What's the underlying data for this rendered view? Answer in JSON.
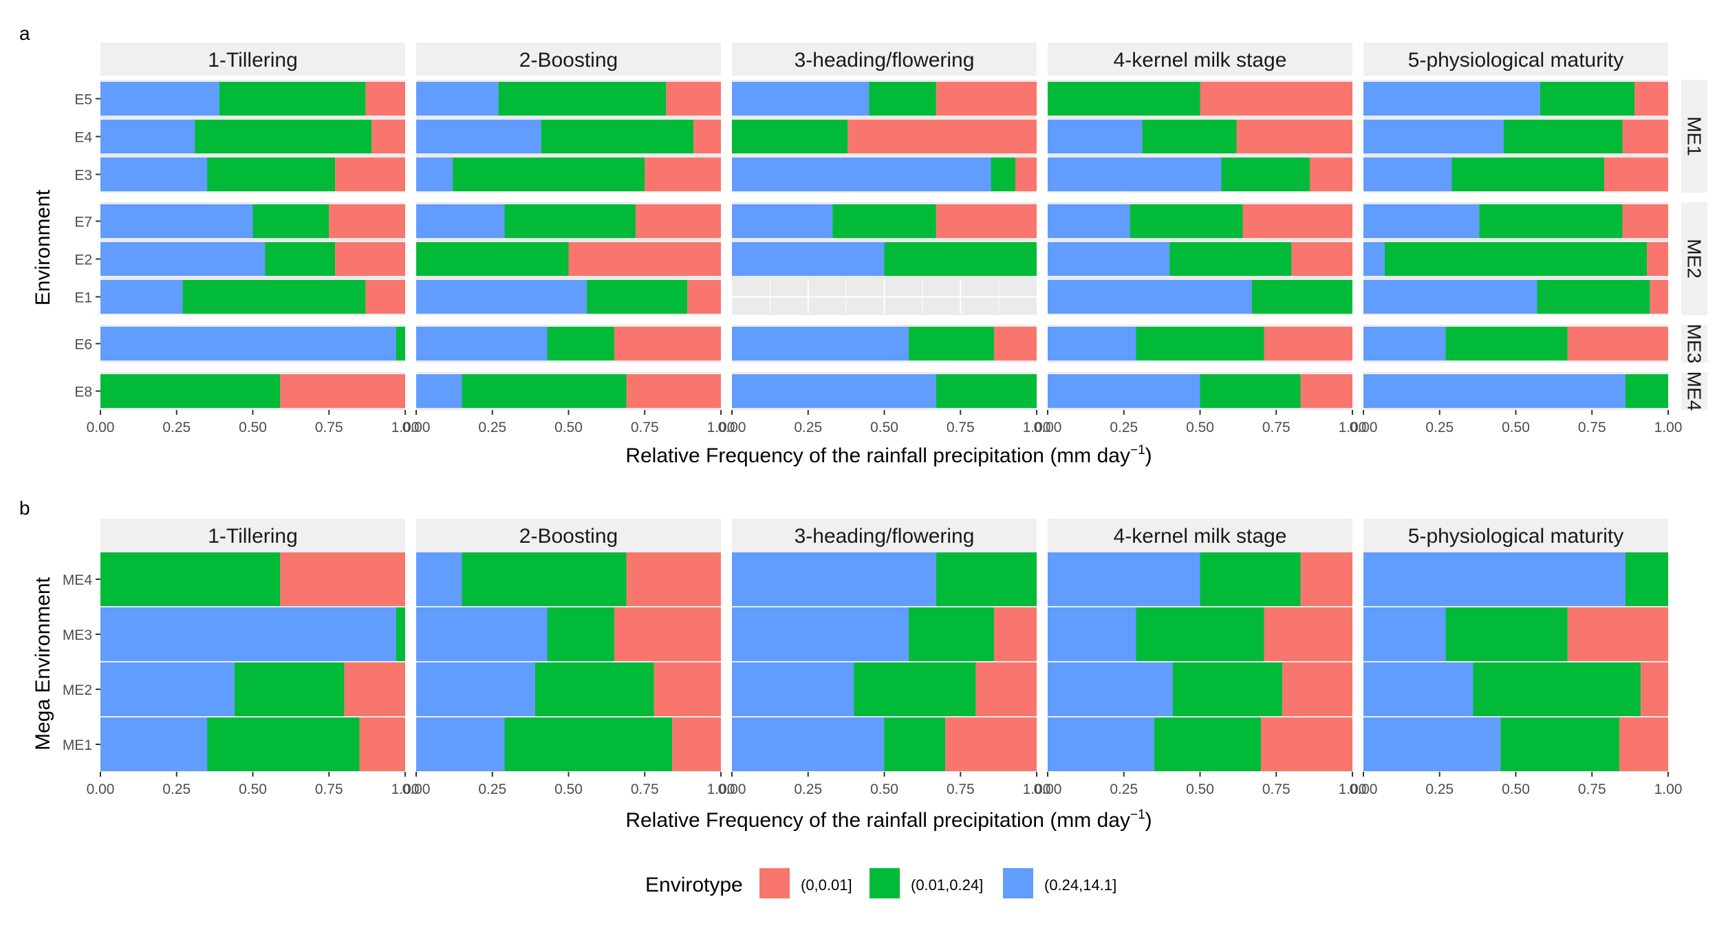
{
  "panel_labels": [
    "a",
    "b"
  ],
  "x_axis": {
    "label_main": "Relative Frequency of the rainfall precipitation (mm day",
    "label_sup": "−1",
    "label_close": ")",
    "ticks": [
      "0.00",
      "0.25",
      "0.50",
      "0.75",
      "1.00"
    ]
  },
  "legend": {
    "title": "Envirotype",
    "items": [
      {
        "label": "(0,0.01]",
        "color": "#F8766D"
      },
      {
        "label": "(0.01,0.24]",
        "color": "#00BA38"
      },
      {
        "label": "(0.24,14.1]",
        "color": "#619CFF"
      }
    ]
  },
  "chart_data": [
    {
      "type": "bar",
      "orientation": "horizontal",
      "stacked": true,
      "panel": "a",
      "ylabel": "Environment",
      "xlabel": "Relative Frequency of the rainfall precipitation (mm day−1)",
      "xlim": [
        0,
        1
      ],
      "stages": [
        "1-Tillering",
        "2-Boosting",
        "3-heading/flowering",
        "4-kernel milk stage",
        "5-physiological maturity"
      ],
      "series_order": [
        "(0.24,14.1]",
        "(0.01,0.24]",
        "(0,0.01]"
      ],
      "groups": [
        {
          "name": "ME1",
          "environments": [
            "E5",
            "E4",
            "E3"
          ],
          "values": [
            [
              [
                0.39,
                0.48,
                0.13
              ],
              [
                0.27,
                0.55,
                0.18
              ],
              [
                0.45,
                0.22,
                0.33
              ],
              [
                0.0,
                0.5,
                0.5
              ],
              [
                0.58,
                0.31,
                0.11
              ]
            ],
            [
              [
                0.31,
                0.58,
                0.11
              ],
              [
                0.41,
                0.5,
                0.09
              ],
              [
                0.0,
                0.38,
                0.62
              ],
              [
                0.31,
                0.31,
                0.38
              ],
              [
                0.46,
                0.39,
                0.15
              ]
            ],
            [
              [
                0.35,
                0.42,
                0.23
              ],
              [
                0.12,
                0.63,
                0.25
              ],
              [
                0.85,
                0.08,
                0.07
              ],
              [
                0.57,
                0.29,
                0.14
              ],
              [
                0.29,
                0.5,
                0.21
              ]
            ]
          ]
        },
        {
          "name": "ME2",
          "environments": [
            "E7",
            "E2",
            "E1"
          ],
          "values": [
            [
              [
                0.5,
                0.25,
                0.25
              ],
              [
                0.29,
                0.43,
                0.28
              ],
              [
                0.33,
                0.34,
                0.33
              ],
              [
                0.27,
                0.37,
                0.36
              ],
              [
                0.38,
                0.47,
                0.15
              ]
            ],
            [
              [
                0.54,
                0.23,
                0.23
              ],
              [
                0.0,
                0.5,
                0.5
              ],
              [
                0.5,
                0.5,
                0.0
              ],
              [
                0.4,
                0.4,
                0.2
              ],
              [
                0.07,
                0.86,
                0.07
              ]
            ],
            [
              [
                0.27,
                0.6,
                0.13
              ],
              [
                0.56,
                0.33,
                0.11
              ],
              null,
              [
                0.67,
                0.33,
                0.0
              ],
              [
                0.57,
                0.37,
                0.06
              ]
            ]
          ]
        },
        {
          "name": "ME3",
          "environments": [
            "E6"
          ],
          "values": [
            [
              [
                0.97,
                0.03,
                0.0
              ],
              [
                0.43,
                0.22,
                0.35
              ],
              [
                0.58,
                0.28,
                0.14
              ],
              [
                0.29,
                0.42,
                0.29
              ],
              [
                0.27,
                0.4,
                0.33
              ]
            ]
          ]
        },
        {
          "name": "ME4",
          "environments": [
            "E8"
          ],
          "values": [
            [
              [
                0.0,
                0.59,
                0.41
              ],
              [
                0.15,
                0.54,
                0.31
              ],
              [
                0.67,
                0.33,
                0.0
              ],
              [
                0.5,
                0.33,
                0.17
              ],
              [
                0.86,
                0.14,
                0.0
              ]
            ]
          ]
        }
      ]
    },
    {
      "type": "bar",
      "orientation": "horizontal",
      "stacked": true,
      "panel": "b",
      "ylabel": "Mega Environment",
      "xlabel": "Relative Frequency of the rainfall precipitation (mm day−1)",
      "xlim": [
        0,
        1
      ],
      "stages": [
        "1-Tillering",
        "2-Boosting",
        "3-heading/flowering",
        "4-kernel milk stage",
        "5-physiological maturity"
      ],
      "series_order": [
        "(0.24,14.1]",
        "(0.01,0.24]",
        "(0,0.01]"
      ],
      "categories": [
        "ME4",
        "ME3",
        "ME2",
        "ME1"
      ],
      "values": [
        [
          [
            0.0,
            0.59,
            0.41
          ],
          [
            0.15,
            0.54,
            0.31
          ],
          [
            0.67,
            0.33,
            0.0
          ],
          [
            0.5,
            0.33,
            0.17
          ],
          [
            0.86,
            0.14,
            0.0
          ]
        ],
        [
          [
            0.97,
            0.03,
            0.0
          ],
          [
            0.43,
            0.22,
            0.35
          ],
          [
            0.58,
            0.28,
            0.14
          ],
          [
            0.29,
            0.42,
            0.29
          ],
          [
            0.27,
            0.4,
            0.33
          ]
        ],
        [
          [
            0.44,
            0.36,
            0.2
          ],
          [
            0.39,
            0.39,
            0.22
          ],
          [
            0.4,
            0.4,
            0.2
          ],
          [
            0.41,
            0.36,
            0.23
          ],
          [
            0.36,
            0.55,
            0.09
          ]
        ],
        [
          [
            0.35,
            0.5,
            0.15
          ],
          [
            0.29,
            0.55,
            0.16
          ],
          [
            0.5,
            0.2,
            0.3
          ],
          [
            0.35,
            0.35,
            0.3
          ],
          [
            0.45,
            0.39,
            0.16
          ]
        ]
      ]
    }
  ]
}
